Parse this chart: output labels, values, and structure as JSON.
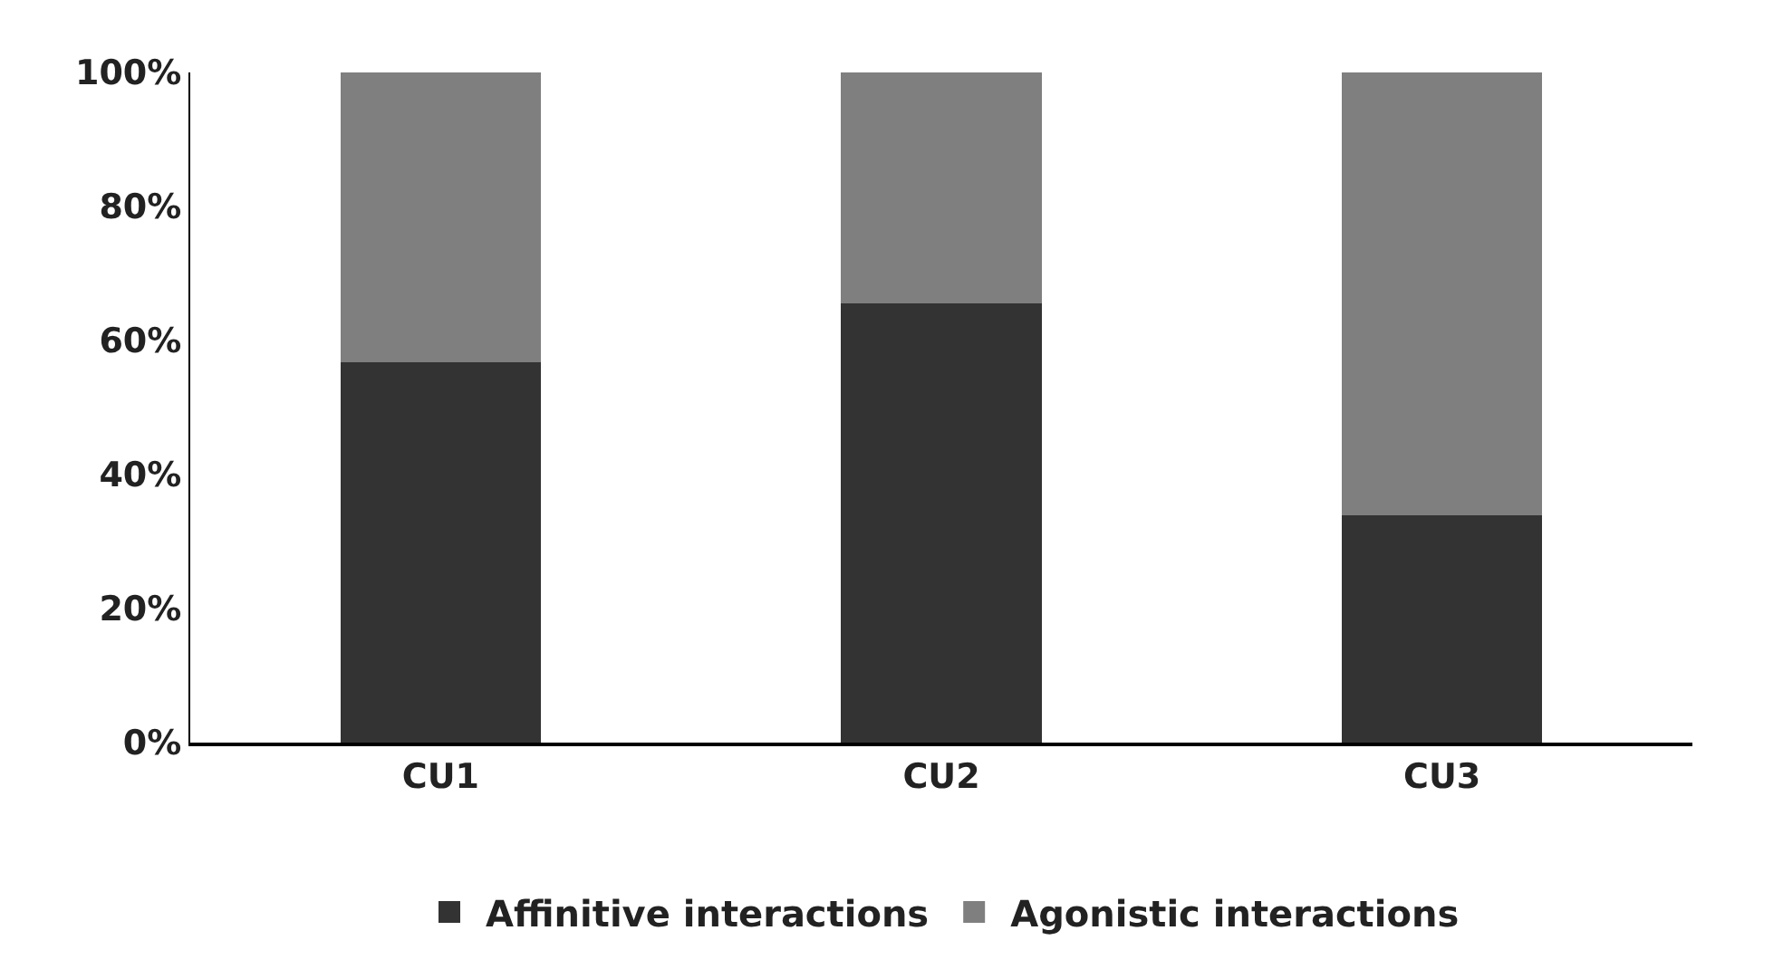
{
  "chart_data": {
    "type": "bar",
    "stacked": true,
    "categories": [
      "CU1",
      "CU2",
      "CU3"
    ],
    "series": [
      {
        "name": "Affinitive interactions",
        "color": "#333333",
        "values": [
          56.7,
          65.6,
          33.9
        ]
      },
      {
        "name": "Agonistic interactions",
        "color": "#7f7f7f",
        "values": [
          43.3,
          34.4,
          66.1
        ]
      }
    ],
    "ylim": [
      0,
      100
    ],
    "yticks": [
      {
        "value": 0,
        "label": "0%"
      },
      {
        "value": 20,
        "label": "20%"
      },
      {
        "value": 40,
        "label": "40%"
      },
      {
        "value": 60,
        "label": "60%"
      },
      {
        "value": 80,
        "label": "80%"
      },
      {
        "value": 100,
        "label": "100%"
      }
    ],
    "legend": "bottom"
  }
}
